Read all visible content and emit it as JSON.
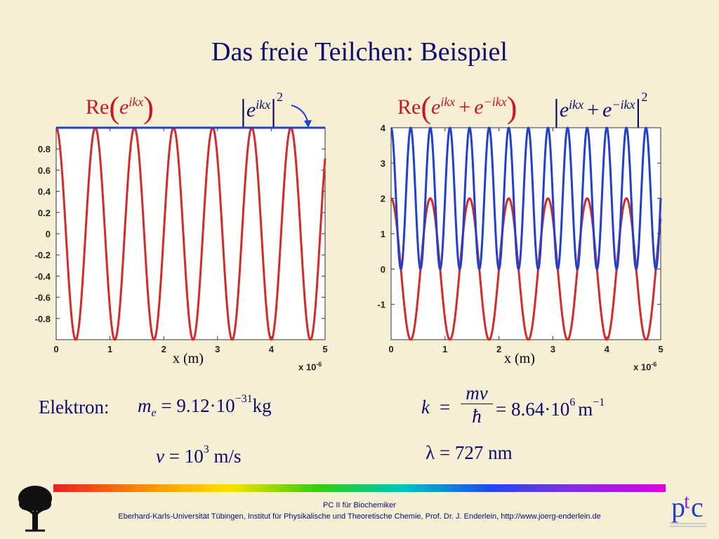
{
  "title": "Das freie Teilchen: Beispiel",
  "left_formula": {
    "re": "Re",
    "e": "e",
    "exp": "ikx"
  },
  "left_formula_abs": {
    "e": "e",
    "exp": "ikx",
    "pow": "2"
  },
  "right_formula": {
    "re": "Re",
    "e1": "e",
    "exp1": "ikx",
    "plus": "+",
    "e2": "e",
    "exp2": "−ikx"
  },
  "right_formula_abs": {
    "e1": "e",
    "exp1": "ikx",
    "plus": "+",
    "e2": "e",
    "exp2": "−ikx",
    "pow": "2"
  },
  "electron": {
    "label": "Elektron:",
    "mass_sym": "m",
    "mass_sub": "e",
    "mass_val": "= 9.12·10",
    "mass_exp": "−31",
    "mass_unit": "kg",
    "v_sym": "v",
    "v_val": "= 10",
    "v_exp": "3",
    "v_unit": "m/s"
  },
  "wave": {
    "k_sym": "k",
    "eq1": "=",
    "num": "mv",
    "den": "ħ",
    "eq2": "= 8.64·10",
    "k_exp": "6",
    "k_unit": "m",
    "k_unit_exp": "−1",
    "lambda_sym": "λ",
    "lambda_val": "= 727",
    "lambda_unit": "nm"
  },
  "footer": {
    "line1": "PC II für Biochemiker",
    "line2": "Eberhard-Karls-Universität Tübingen, Institut für Physikalische und Theoretische Chemie, Prof. Dr. J. Enderlein, http://www.joerg-enderlein.de"
  },
  "logo": {
    "p": "p",
    "t": "t",
    "c": "c"
  },
  "colors": {
    "red": "#d42a2a",
    "blue": "#2040d0",
    "title": "#0b0b6b"
  },
  "chart_data": [
    {
      "type": "line",
      "xlabel": "x (m)",
      "x_exponent_label": "x 10",
      "x_exponent": "-6",
      "xlim": [
        0,
        5e-06
      ],
      "ylim": [
        -1,
        1
      ],
      "x_ticks": [
        "0",
        "1",
        "2",
        "3",
        "4",
        "5"
      ],
      "y_ticks": [
        "0.8",
        "0.6",
        "0.4",
        "0.2",
        "0",
        "-0.2",
        "-0.4",
        "-0.6",
        "-0.8"
      ],
      "y_tick_values": [
        0.8,
        0.6,
        0.4,
        0.2,
        0,
        -0.2,
        -0.4,
        -0.6,
        -0.8
      ],
      "k": 8640000,
      "series": [
        {
          "function": "cos(kx)",
          "color": "#d42a2a"
        },
        {
          "function": "1",
          "color": "#2040d0"
        }
      ]
    },
    {
      "type": "line",
      "xlabel": "x (m)",
      "x_exponent_label": "x 10",
      "x_exponent": "-6",
      "xlim": [
        0,
        5e-06
      ],
      "ylim": [
        -2,
        4
      ],
      "x_ticks": [
        "0",
        "1",
        "2",
        "3",
        "4",
        "5"
      ],
      "y_ticks": [
        "4",
        "3",
        "2",
        "1",
        "0",
        "-1"
      ],
      "y_tick_values": [
        4,
        3,
        2,
        1,
        0,
        -1
      ],
      "k": 8640000,
      "series": [
        {
          "function": "2cos(kx)",
          "color": "#d42a2a"
        },
        {
          "function": "4cos²(kx)",
          "color": "#2040d0"
        }
      ]
    }
  ]
}
